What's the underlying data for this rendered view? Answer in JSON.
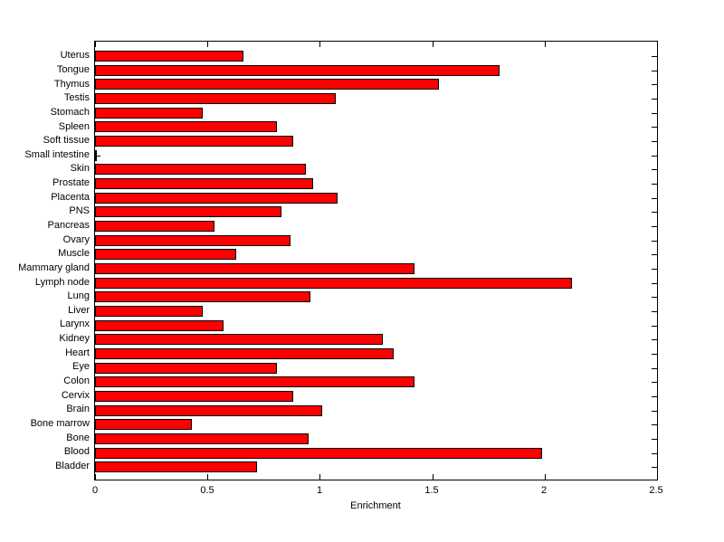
{
  "chart_data": {
    "type": "bar",
    "orientation": "horizontal",
    "xlabel": "Enrichment",
    "xlim": [
      0,
      2.5
    ],
    "xticks": [
      0,
      0.5,
      1,
      1.5,
      2,
      2.5
    ],
    "xtick_labels": [
      "0",
      "0.5",
      "1",
      "1.5",
      "2",
      "2.5"
    ],
    "grid": false,
    "legend": "none",
    "bar_color": "#FF0000",
    "bar_edge_color": "#000000",
    "background_color": "#FFFFFF",
    "axis_color": "#000000",
    "categories": [
      "Uterus",
      "Tongue",
      "Thymus",
      "Testis",
      "Stomach",
      "Spleen",
      "Soft tissue",
      "Small intestine",
      "Skin",
      "Prostate",
      "Placenta",
      "PNS",
      "Pancreas",
      "Ovary",
      "Muscle",
      "Mammary gland",
      "Lymph node",
      "Lung",
      "Liver",
      "Larynx",
      "Kidney",
      "Heart",
      "Eye",
      "Colon",
      "Cervix",
      "Brain",
      "Bone marrow",
      "Bone",
      "Blood",
      "Bladder"
    ],
    "values": [
      0.66,
      1.8,
      1.53,
      1.07,
      0.48,
      0.81,
      0.88,
      0,
      0.94,
      0.97,
      1.08,
      0.83,
      0.53,
      0.87,
      0.63,
      1.42,
      2.12,
      0.96,
      0.48,
      0.57,
      1.28,
      1.33,
      0.81,
      1.42,
      0.88,
      1.01,
      0.43,
      0.95,
      1.99,
      0.72
    ]
  }
}
